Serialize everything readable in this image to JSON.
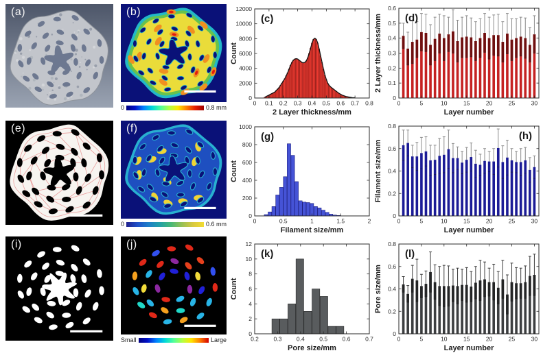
{
  "figure": {
    "bg": "#ffffff",
    "panels": {
      "a": {
        "label": "(a)",
        "kind": "3d-microct-render",
        "colors": {
          "bg_top": "#4d5669",
          "bg_bottom": "#9aa3b2",
          "material": "#c2c5cb",
          "pore": "#6d7890"
        }
      },
      "b": {
        "label": "(b)",
        "kind": "layer-thickness-contour-map",
        "colors": {
          "bg": "#0a1178",
          "outer": "#22b8c8",
          "mid": "#66c24e",
          "inner": "#eadc3a",
          "hot": "#f09020",
          "hottest": "#e01c10"
        },
        "colorbar": {
          "min": "0",
          "max": "0.8 mm",
          "stops": [
            "#000082",
            "#0010c8",
            "#0080ff",
            "#00d8d8",
            "#50ff9a",
            "#b4ff44",
            "#ffe600",
            "#ff7d00",
            "#e61e00",
            "#9e0000"
          ]
        }
      },
      "e": {
        "label": "(e)",
        "kind": "segmented-slice-with-mesh",
        "colors": {
          "bg": "#000000",
          "material": "#f7f4f0",
          "mesh": "#e89494"
        }
      },
      "f": {
        "label": "(f)",
        "kind": "filament-size-map",
        "colors": {
          "bg": "#0a1178",
          "outer": "#28b0d0",
          "inner": "#1e4fc0",
          "hot": "#f0d435"
        },
        "colorbar": {
          "min": "0",
          "max": "0.6 mm",
          "stops": [
            "#20208c",
            "#2050c8",
            "#1e7ec8",
            "#22a0a8",
            "#46b878",
            "#96c055",
            "#d8c840",
            "#f2dc32"
          ]
        }
      },
      "i": {
        "label": "(i)",
        "kind": "pore-binary-mask",
        "colors": {
          "bg": "#000000",
          "pore": "#ffffff"
        }
      },
      "j": {
        "label": "(j)",
        "kind": "pore-size-labeled-map",
        "colors": {
          "bg": "#000000",
          "palette": [
            "#2020d8",
            "#28b4e6",
            "#f2dc3a",
            "#f5a01e",
            "#e02818",
            "#8c28a0",
            "#3250f0",
            "#e6401c",
            "#20d8c8"
          ]
        },
        "colorbar": {
          "min": "Small",
          "max": "Large",
          "stops": [
            "#000082",
            "#0010c8",
            "#0080ff",
            "#00d8d8",
            "#50ff9a",
            "#b4ff44",
            "#ffe600",
            "#ff7d00",
            "#d40000"
          ]
        }
      },
      "scalebar_color": "#ffffff"
    }
  },
  "chart_data": [
    {
      "key": "c",
      "type": "histogram",
      "panel_label": "(c)",
      "label_pos": "tl",
      "title": "",
      "xlabel": "2 Layer thickness/mm",
      "ylabel": "Count",
      "xlim": [
        0,
        0.8
      ],
      "ylim": [
        0,
        12000
      ],
      "xticks": [
        0,
        0.1,
        0.2,
        0.3,
        0.4,
        0.5,
        0.6,
        0.7,
        0.8
      ],
      "yticks": [
        0,
        2000,
        4000,
        6000,
        8000,
        10000,
        12000
      ],
      "grid": false,
      "curve": true,
      "color": "#f03c32",
      "edge": "#8c1410",
      "bin_width": 0.01,
      "bin_centers": [
        0.07,
        0.08,
        0.09,
        0.1,
        0.11,
        0.12,
        0.13,
        0.14,
        0.15,
        0.16,
        0.17,
        0.18,
        0.19,
        0.2,
        0.21,
        0.22,
        0.23,
        0.24,
        0.25,
        0.26,
        0.27,
        0.28,
        0.29,
        0.3,
        0.31,
        0.32,
        0.33,
        0.34,
        0.35,
        0.36,
        0.37,
        0.38,
        0.39,
        0.4,
        0.41,
        0.42,
        0.43,
        0.44,
        0.45,
        0.46,
        0.47,
        0.48,
        0.49,
        0.5,
        0.51,
        0.52,
        0.53,
        0.54,
        0.55,
        0.56,
        0.57,
        0.58,
        0.59,
        0.6,
        0.61,
        0.62,
        0.63,
        0.64,
        0.65,
        0.66,
        0.67,
        0.68,
        0.69,
        0.7
      ],
      "counts": [
        100,
        200,
        300,
        400,
        500,
        600,
        700,
        800,
        1000,
        1200,
        1400,
        1700,
        2000,
        2300,
        2600,
        3000,
        3400,
        3900,
        4400,
        4800,
        5100,
        5250,
        5300,
        5250,
        5100,
        4950,
        4800,
        4750,
        4800,
        5000,
        5400,
        6000,
        6700,
        7400,
        7900,
        8050,
        7900,
        7400,
        6600,
        5700,
        4800,
        3900,
        3100,
        2500,
        2000,
        1700,
        1500,
        1350,
        1200,
        1050,
        900,
        750,
        620,
        500,
        400,
        320,
        250,
        200,
        160,
        120,
        90,
        60,
        40,
        30
      ]
    },
    {
      "key": "d",
      "type": "bar",
      "panel_label": "(d)",
      "label_pos": "tl",
      "title": "",
      "xlabel": "Layer number",
      "ylabel": "2 Layer thickness/mm",
      "xlim": [
        0,
        31
      ],
      "ylim": [
        0,
        0.6
      ],
      "xticks": [
        0,
        5,
        10,
        15,
        20,
        25,
        30
      ],
      "yticks": [
        0,
        0.1,
        0.2,
        0.3,
        0.4,
        0.5,
        0.6
      ],
      "grid": false,
      "color": "#c52222",
      "dark": "#6e0f0f",
      "whisker": "#8a8a8a",
      "layers": [
        1,
        2,
        3,
        4,
        5,
        6,
        7,
        8,
        9,
        10,
        11,
        12,
        13,
        14,
        15,
        16,
        17,
        18,
        19,
        20,
        21,
        22,
        23,
        24,
        25,
        26,
        27,
        28,
        29,
        30
      ],
      "values": [
        0.415,
        0.33,
        0.375,
        0.39,
        0.44,
        0.435,
        0.355,
        0.395,
        0.43,
        0.4,
        0.425,
        0.445,
        0.38,
        0.405,
        0.41,
        0.405,
        0.38,
        0.4,
        0.435,
        0.4,
        0.42,
        0.42,
        0.375,
        0.43,
        0.39,
        0.4,
        0.41,
        0.4,
        0.355,
        0.425
      ],
      "errors": [
        0.085,
        0.11,
        0.145,
        0.12,
        0.125,
        0.125,
        0.135,
        0.145,
        0.13,
        0.15,
        0.115,
        0.145,
        0.14,
        0.135,
        0.14,
        0.13,
        0.13,
        0.13,
        0.13,
        0.14,
        0.135,
        0.14,
        0.135,
        0.135,
        0.14,
        0.13,
        0.13,
        0.135,
        0.115,
        0.125
      ]
    },
    {
      "key": "g",
      "type": "histogram",
      "panel_label": "(g)",
      "label_pos": "tl",
      "title": "",
      "xlabel": "Filament size/mm",
      "ylabel": "Count",
      "xlim": [
        0,
        2
      ],
      "ylim": [
        0,
        1000
      ],
      "xticks": [
        0,
        0.5,
        1,
        1.5,
        2
      ],
      "yticks": [
        0,
        200,
        400,
        600,
        800,
        1000
      ],
      "grid": false,
      "curve": false,
      "color": "#4553d6",
      "edge": "#10106e",
      "bin_width": 0.0667,
      "bin_centers": [
        0.2,
        0.267,
        0.333,
        0.4,
        0.467,
        0.533,
        0.6,
        0.667,
        0.733,
        0.8,
        0.867,
        0.933,
        1.0,
        1.067,
        1.133,
        1.2,
        1.267,
        1.333,
        1.4,
        1.467
      ],
      "counts": [
        15,
        45,
        105,
        235,
        320,
        440,
        810,
        680,
        385,
        170,
        155,
        150,
        140,
        105,
        90,
        65,
        40,
        20,
        10,
        5
      ]
    },
    {
      "key": "h",
      "type": "bar",
      "panel_label": "(h)",
      "label_pos": "tr",
      "title": "",
      "xlabel": "Layer number",
      "ylabel": "Filament size/mm",
      "xlim": [
        0,
        31
      ],
      "ylim": [
        0,
        0.8
      ],
      "xticks": [
        0,
        5,
        10,
        15,
        20,
        25,
        30
      ],
      "yticks": [
        0,
        0.2,
        0.4,
        0.6,
        0.8
      ],
      "grid": false,
      "color": "#1b1b96",
      "whisker": "#8a8a8a",
      "layers": [
        1,
        2,
        3,
        4,
        5,
        6,
        7,
        8,
        9,
        10,
        11,
        12,
        13,
        14,
        15,
        16,
        17,
        18,
        19,
        20,
        21,
        22,
        23,
        24,
        25,
        26,
        27,
        28,
        29,
        30
      ],
      "values": [
        0.63,
        0.65,
        0.53,
        0.53,
        0.56,
        0.575,
        0.495,
        0.5,
        0.535,
        0.545,
        0.595,
        0.515,
        0.515,
        0.475,
        0.5,
        0.525,
        0.465,
        0.455,
        0.49,
        0.485,
        0.485,
        0.605,
        0.48,
        0.52,
        0.495,
        0.48,
        0.48,
        0.495,
        0.41,
        0.435
      ],
      "errors": [
        0.135,
        0.115,
        0.1,
        0.125,
        0.14,
        0.13,
        0.135,
        0.13,
        0.155,
        0.16,
        0.17,
        0.13,
        0.1,
        0.1,
        0.11,
        0.125,
        0.12,
        0.095,
        0.11,
        0.09,
        0.115,
        0.17,
        0.145,
        0.155,
        0.105,
        0.095,
        0.12,
        0.115,
        0.11,
        0.1
      ]
    },
    {
      "key": "k",
      "type": "histogram",
      "panel_label": "(k)",
      "label_pos": "tl",
      "title": "",
      "xlabel": "Pore size/mm",
      "ylabel": "Count",
      "xlim": [
        0.2,
        0.7
      ],
      "ylim": [
        0,
        12
      ],
      "xticks": [
        0.2,
        0.3,
        0.4,
        0.5,
        0.6,
        0.7
      ],
      "yticks": [
        0,
        2,
        4,
        6,
        8,
        10,
        12
      ],
      "grid": false,
      "curve": false,
      "color": "#595c5e",
      "edge": "#141414",
      "bin_width": 0.035,
      "bin_centers": [
        0.2925,
        0.3275,
        0.3625,
        0.3975,
        0.4325,
        0.4675,
        0.5025,
        0.5375,
        0.5725
      ],
      "counts": [
        2,
        2,
        4,
        10,
        3,
        6,
        5,
        1,
        1
      ]
    },
    {
      "key": "l",
      "type": "bar",
      "panel_label": "(l)",
      "label_pos": "tl",
      "title": "",
      "xlabel": "Layer number",
      "ylabel": "Pore size/mm",
      "xlim": [
        0,
        31
      ],
      "ylim": [
        0,
        0.8
      ],
      "xticks": [
        0,
        5,
        10,
        15,
        20,
        25,
        30
      ],
      "yticks": [
        0,
        0.2,
        0.4,
        0.6,
        0.8
      ],
      "grid": false,
      "color": "#3c3e40",
      "dark": "#232425",
      "whisker": "#3a3a3a",
      "layers": [
        1,
        2,
        3,
        4,
        5,
        6,
        7,
        8,
        9,
        10,
        11,
        12,
        13,
        14,
        15,
        16,
        17,
        18,
        19,
        20,
        21,
        22,
        23,
        24,
        25,
        26,
        27,
        28,
        29,
        30
      ],
      "values": [
        0.44,
        0.355,
        0.49,
        0.475,
        0.425,
        0.445,
        0.55,
        0.46,
        0.425,
        0.425,
        0.425,
        0.43,
        0.425,
        0.435,
        0.435,
        0.42,
        0.455,
        0.475,
        0.485,
        0.46,
        0.46,
        0.41,
        0.485,
        0.35,
        0.46,
        0.45,
        0.45,
        0.46,
        0.515,
        0.525
      ],
      "errors": [
        0.07,
        0.075,
        0.12,
        0.19,
        0.105,
        0.115,
        0.18,
        0.155,
        0.175,
        0.185,
        0.18,
        0.145,
        0.16,
        0.14,
        0.155,
        0.135,
        0.145,
        0.18,
        0.155,
        0.125,
        0.16,
        0.145,
        0.17,
        0.175,
        0.17,
        0.14,
        0.135,
        0.145,
        0.175,
        0.185
      ]
    }
  ]
}
